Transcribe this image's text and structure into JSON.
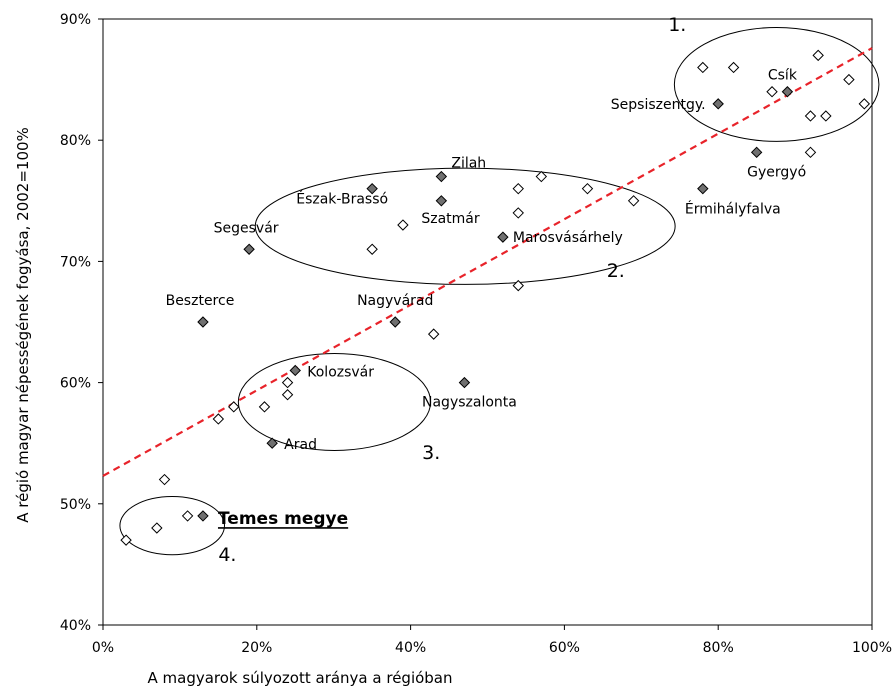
{
  "chart_data": {
    "type": "scatter",
    "title": "",
    "xlabel": "A magyarok súlyozott aránya a régióban",
    "ylabel": "A régió magyar népességének fogyása, 2002=100%",
    "xlim": [
      0,
      100
    ],
    "ylim": [
      40,
      90
    ],
    "x_ticks": [
      "0%",
      "20%",
      "40%",
      "60%",
      "80%",
      "100%"
    ],
    "y_ticks": [
      "40%",
      "50%",
      "60%",
      "70%",
      "80%",
      "90%"
    ],
    "grid": false,
    "trendline": {
      "style": "dashed",
      "color": "#e8232a",
      "x": [
        0,
        100
      ],
      "y": [
        52.3,
        87.6
      ]
    },
    "series": [
      {
        "marker": "diamond-filled",
        "color": "#707070",
        "points": [
          {
            "x": 13,
            "y": 49,
            "label": "Temes megye",
            "special": true
          },
          {
            "x": 13,
            "y": 65,
            "label": "Beszterce"
          },
          {
            "x": 19,
            "y": 71,
            "label": "Segesvár"
          },
          {
            "x": 22,
            "y": 55,
            "label": "Arad"
          },
          {
            "x": 25,
            "y": 61,
            "label": "Kolozsvár"
          },
          {
            "x": 35,
            "y": 76,
            "label": "Észak-Brassó"
          },
          {
            "x": 38,
            "y": 65,
            "label": "Nagyvárad"
          },
          {
            "x": 44,
            "y": 77,
            "label": "Zilah"
          },
          {
            "x": 44,
            "y": 75,
            "label": "Szatmár"
          },
          {
            "x": 47,
            "y": 60,
            "label": "Nagyszalonta"
          },
          {
            "x": 52,
            "y": 72,
            "label": "Marosvásárhely"
          },
          {
            "x": 78,
            "y": 76,
            "label": "Érmihályfalva"
          },
          {
            "x": 80,
            "y": 83,
            "label": "Sepsiszentgy."
          },
          {
            "x": 85,
            "y": 79,
            "label": "Gyergyó"
          },
          {
            "x": 89,
            "y": 84,
            "label": "Csík"
          }
        ]
      },
      {
        "marker": "diamond-open",
        "color": "#ffffff",
        "points": [
          {
            "x": 3,
            "y": 47
          },
          {
            "x": 7,
            "y": 48
          },
          {
            "x": 8,
            "y": 52
          },
          {
            "x": 11,
            "y": 49
          },
          {
            "x": 15,
            "y": 57
          },
          {
            "x": 17,
            "y": 58
          },
          {
            "x": 21,
            "y": 58
          },
          {
            "x": 24,
            "y": 59
          },
          {
            "x": 24,
            "y": 60
          },
          {
            "x": 35,
            "y": 71
          },
          {
            "x": 39,
            "y": 73
          },
          {
            "x": 43,
            "y": 64
          },
          {
            "x": 54,
            "y": 76
          },
          {
            "x": 54,
            "y": 74
          },
          {
            "x": 54,
            "y": 68
          },
          {
            "x": 57,
            "y": 77
          },
          {
            "x": 63,
            "y": 76
          },
          {
            "x": 69,
            "y": 75
          },
          {
            "x": 78,
            "y": 86
          },
          {
            "x": 82,
            "y": 86
          },
          {
            "x": 87,
            "y": 84
          },
          {
            "x": 92,
            "y": 82
          },
          {
            "x": 92,
            "y": 79
          },
          {
            "x": 93,
            "y": 87
          },
          {
            "x": 94,
            "y": 82
          },
          {
            "x": 97,
            "y": 85
          },
          {
            "x": 99,
            "y": 83
          }
        ]
      }
    ],
    "groups": [
      {
        "label": "1.",
        "cx": 87.6,
        "cy": 84.6,
        "rx": 13.3,
        "ry": 4.7
      },
      {
        "label": "2.",
        "cx": 47.1,
        "cy": 72.9,
        "rx": 27.3,
        "ry": 4.8
      },
      {
        "label": "3.",
        "cx": 30.1,
        "cy": 58.4,
        "rx": 12.5,
        "ry": 4.0
      },
      {
        "label": "4.",
        "cx": 9.0,
        "cy": 48.2,
        "rx": 6.8,
        "ry": 2.4
      }
    ]
  }
}
